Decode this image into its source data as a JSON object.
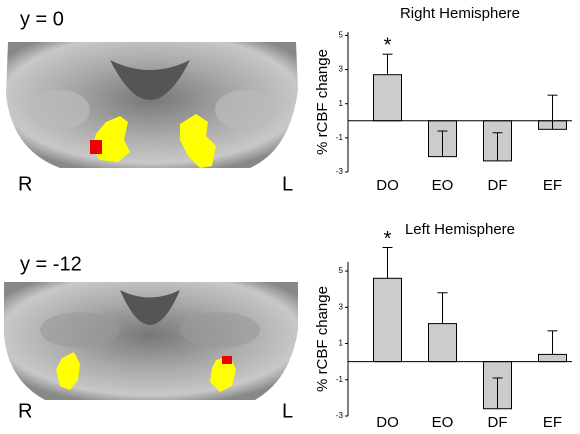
{
  "chart_data": [
    {
      "type": "bar",
      "title": "Right Hemisphere",
      "y_label": "% rCBF change",
      "categories": [
        "DO",
        "EO",
        "DF",
        "EF"
      ],
      "values": [
        2.7,
        -2.1,
        -2.35,
        -0.5
      ],
      "errors": [
        1.2,
        1.5,
        1.65,
        2.0
      ],
      "color": "#cccccc",
      "ylim": [
        -3,
        5.2
      ],
      "yticks": [
        5,
        3,
        1,
        -1,
        -3
      ],
      "annotations": [
        {
          "label": "*",
          "category": "DO"
        }
      ]
    },
    {
      "type": "bar",
      "title": "Left Hemisphere",
      "y_label": "% rCBF change",
      "categories": [
        "DO",
        "EO",
        "DF",
        "EF"
      ],
      "values": [
        4.6,
        2.1,
        -2.6,
        0.4
      ],
      "errors": [
        1.7,
        1.7,
        1.7,
        1.3
      ],
      "color": "#cccccc",
      "ylim": [
        -3,
        5.5
      ],
      "yticks": [
        5,
        3,
        1,
        -1,
        -3
      ],
      "annotations": [
        {
          "label": "*",
          "category": "DO"
        }
      ]
    }
  ],
  "brain_panels": [
    {
      "label": "y = 0",
      "left_side": "R",
      "right_side": "L"
    },
    {
      "label": "y = -12",
      "left_side": "R",
      "right_side": "L"
    }
  ]
}
